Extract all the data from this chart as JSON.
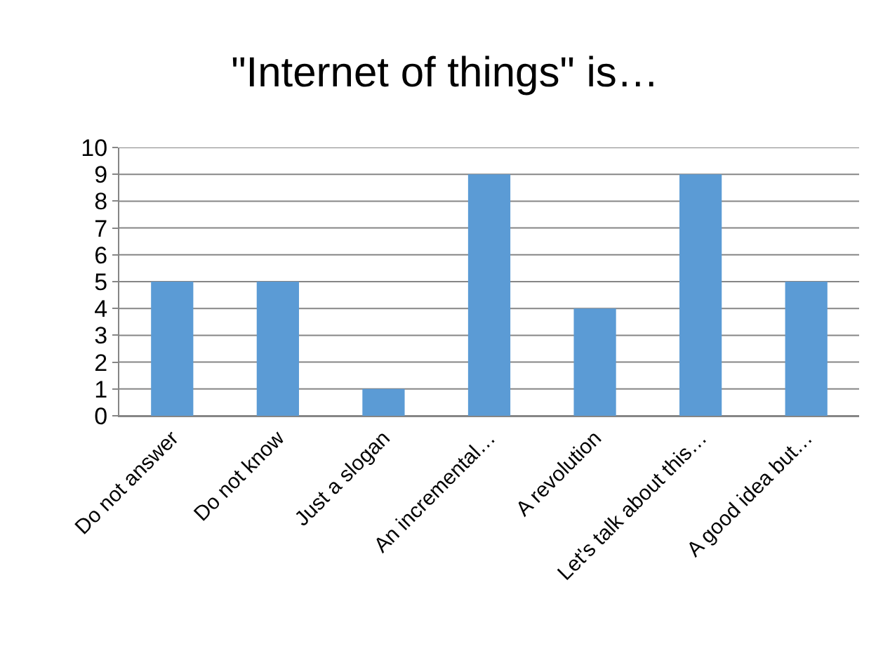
{
  "chart_data": {
    "type": "bar",
    "title": "\"Internet of things\" is…",
    "categories": [
      "Do not answer",
      "Do not know",
      "Just a slogan",
      "An incremental…",
      "A revolution",
      "Let's talk about this…",
      "A good idea but…"
    ],
    "values": [
      5,
      5,
      1,
      9,
      4,
      9,
      5
    ],
    "color": "#5b9bd5",
    "ylim": [
      0,
      10
    ],
    "yticks": [
      0,
      1,
      2,
      3,
      4,
      5,
      6,
      7,
      8,
      9,
      10
    ],
    "grid": "y"
  }
}
